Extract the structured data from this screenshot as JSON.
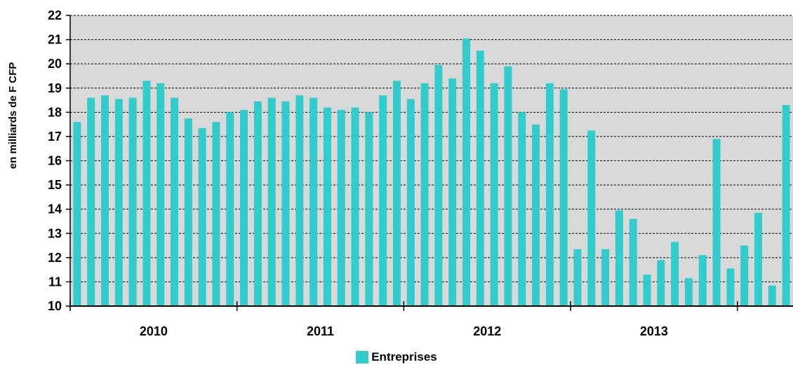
{
  "chart_data": {
    "type": "bar",
    "title": "",
    "xlabel": "",
    "ylabel": "en   milliards de F CFP",
    "ylim": [
      10,
      22
    ],
    "yticks": [
      10,
      11,
      12,
      13,
      14,
      15,
      16,
      17,
      18,
      19,
      20,
      21,
      22
    ],
    "grid": true,
    "legend_position": "bottom",
    "colors": {
      "bar": "#33CCCC",
      "plot_background": "#D9D9D9",
      "gridline": "#000000"
    },
    "year_labels": [
      "2010",
      "2011",
      "2012",
      "2013"
    ],
    "series": [
      {
        "name": "Entreprises",
        "values": [
          17.6,
          18.6,
          18.7,
          18.55,
          18.6,
          19.3,
          19.2,
          18.6,
          17.75,
          17.35,
          17.6,
          18.0,
          18.1,
          18.45,
          18.6,
          18.45,
          18.7,
          18.6,
          18.2,
          18.1,
          18.2,
          18.0,
          18.7,
          19.3,
          18.55,
          19.2,
          19.95,
          19.4,
          21.05,
          20.55,
          19.2,
          19.9,
          18.0,
          17.5,
          19.2,
          18.95,
          12.35,
          17.25,
          12.35,
          13.95,
          13.6,
          11.3,
          11.9,
          12.65,
          11.15,
          12.1,
          16.9,
          11.55,
          12.5,
          13.85,
          10.85,
          18.3
        ]
      }
    ]
  }
}
